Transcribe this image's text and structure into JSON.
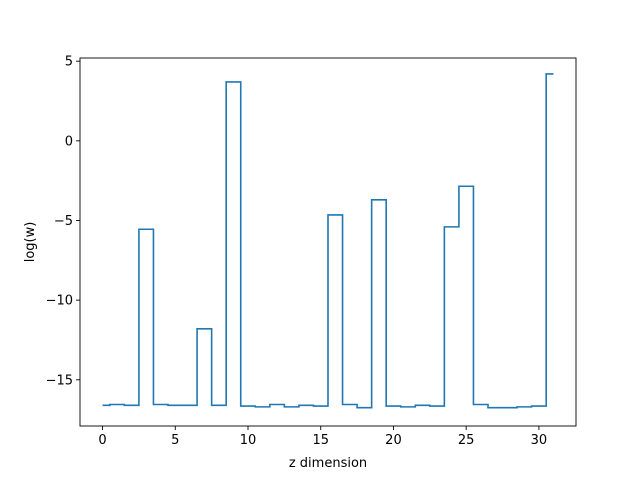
{
  "chart_data": {
    "type": "line",
    "drawstyle": "steps-mid",
    "title": "",
    "xlabel": "z dimension",
    "ylabel": "log(w)",
    "xlim": [
      -1.55,
      32.55
    ],
    "ylim": [
      -17.9,
      5.2
    ],
    "xticks": [
      0,
      5,
      10,
      15,
      20,
      25,
      30
    ],
    "yticks": [
      -15,
      -10,
      -5,
      0,
      5
    ],
    "ytick_labels": [
      "−15",
      "−10",
      "−5",
      "0",
      "5"
    ],
    "grid": false,
    "line_color": "#1f77b4",
    "x": [
      0,
      1,
      2,
      3,
      4,
      5,
      6,
      7,
      8,
      9,
      10,
      11,
      12,
      13,
      14,
      15,
      16,
      17,
      18,
      19,
      20,
      21,
      22,
      23,
      24,
      25,
      26,
      27,
      28,
      29,
      30,
      31
    ],
    "values": [
      -16.6,
      -16.55,
      -16.6,
      -5.55,
      -16.55,
      -16.6,
      -16.6,
      -11.8,
      -16.6,
      3.7,
      -16.65,
      -16.7,
      -16.55,
      -16.7,
      -16.6,
      -16.65,
      -4.65,
      -16.55,
      -16.75,
      -3.7,
      -16.65,
      -16.7,
      -16.6,
      -16.65,
      -5.4,
      -2.85,
      -16.55,
      -16.75,
      -16.75,
      -16.7,
      -16.65,
      4.2
    ]
  }
}
